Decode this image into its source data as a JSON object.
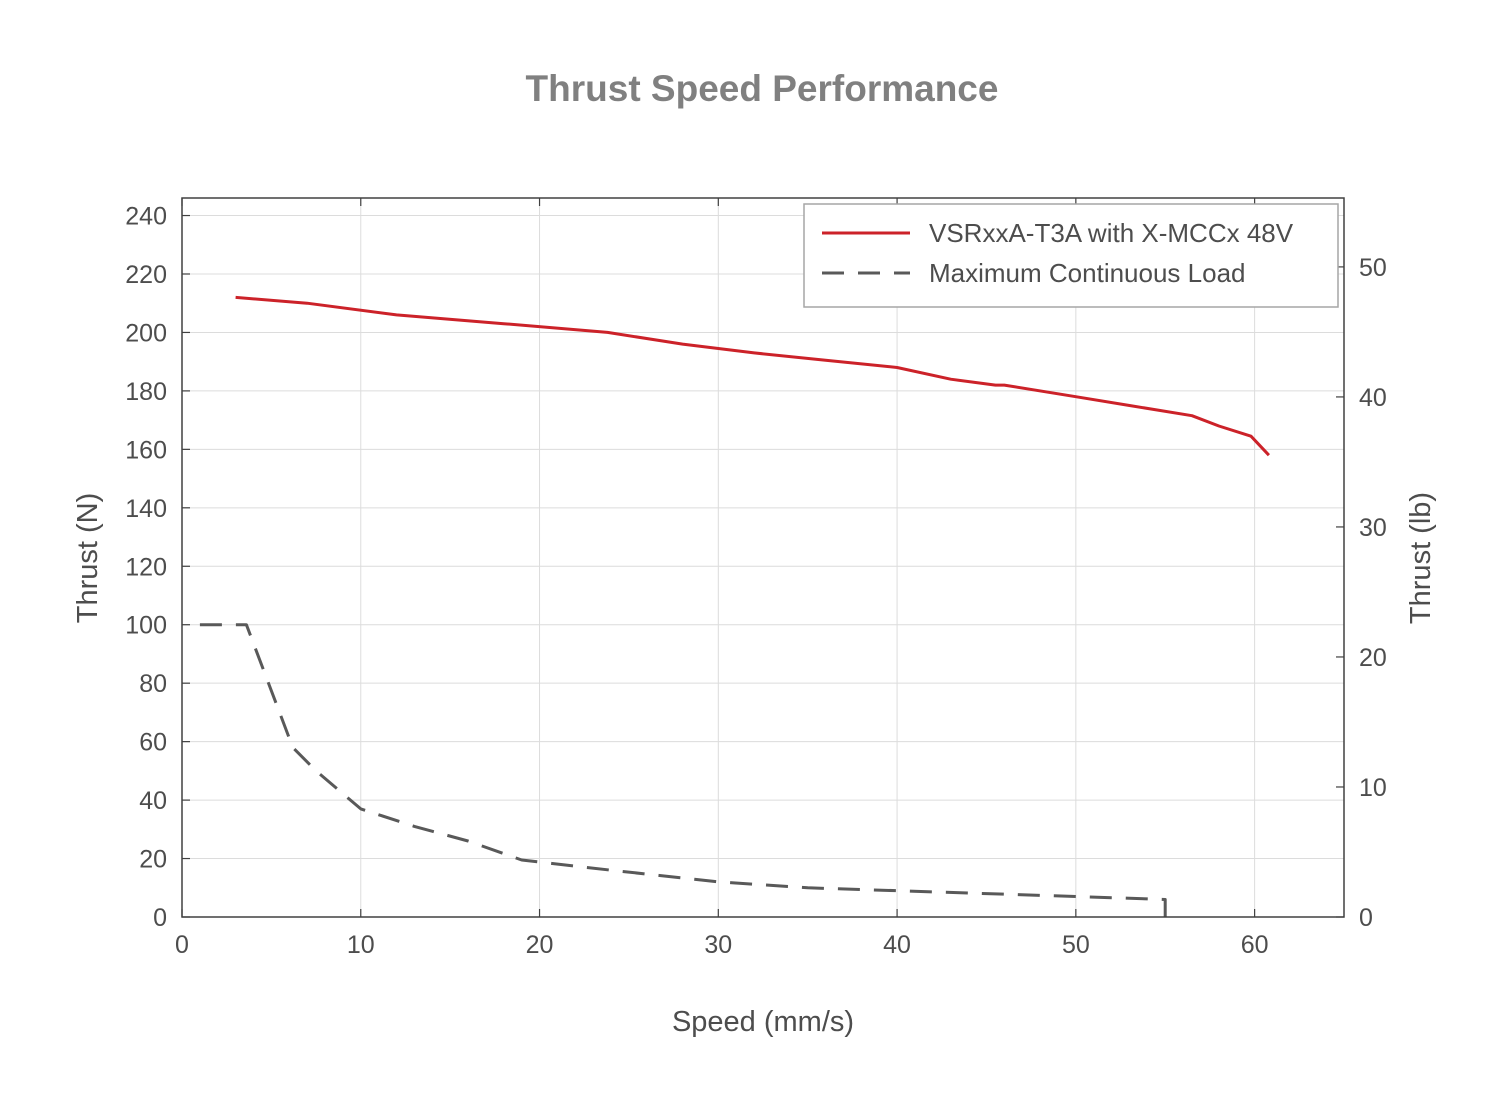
{
  "chart_data": {
    "type": "line",
    "title": "Thrust Speed Performance",
    "xlabel": "Speed (mm/s)",
    "ylabel": "Thrust (N)",
    "y2label": "Thrust (lb)",
    "xlim": [
      0,
      65
    ],
    "ylim": [
      0,
      246
    ],
    "y2lim": [
      0,
      55.3
    ],
    "xticks": [
      0,
      10,
      20,
      30,
      40,
      50,
      60
    ],
    "yticks": [
      0,
      20,
      40,
      60,
      80,
      100,
      120,
      140,
      160,
      180,
      200,
      220,
      240
    ],
    "y2ticks": [
      0,
      10,
      20,
      30,
      40,
      50
    ],
    "grid": true,
    "legend_position": "top-right",
    "series": [
      {
        "name": "VSRxxA-T3A with X-MCCx 48V",
        "color": "#cc2229",
        "style": "solid",
        "x": [
          3,
          7,
          12,
          18,
          23.8,
          28,
          32,
          36,
          40,
          43,
          45.5,
          46,
          50,
          53,
          56.5,
          58,
          59.8,
          60.8
        ],
        "y": [
          212,
          210,
          206,
          203,
          200,
          196,
          193,
          190.5,
          188,
          184,
          182,
          182,
          178,
          175,
          171.5,
          168,
          164.5,
          158
        ]
      },
      {
        "name": "Maximum Continuous Load",
        "color": "#595959",
        "style": "dashed",
        "x": [
          1,
          3.6,
          6.2,
          7.5,
          10,
          13,
          16,
          19,
          24,
          30,
          35,
          40,
          45,
          50,
          55,
          55
        ],
        "y": [
          100,
          100,
          58,
          50,
          37,
          31,
          26,
          19.5,
          16,
          12,
          10,
          9,
          8,
          7,
          6,
          0
        ]
      }
    ]
  }
}
